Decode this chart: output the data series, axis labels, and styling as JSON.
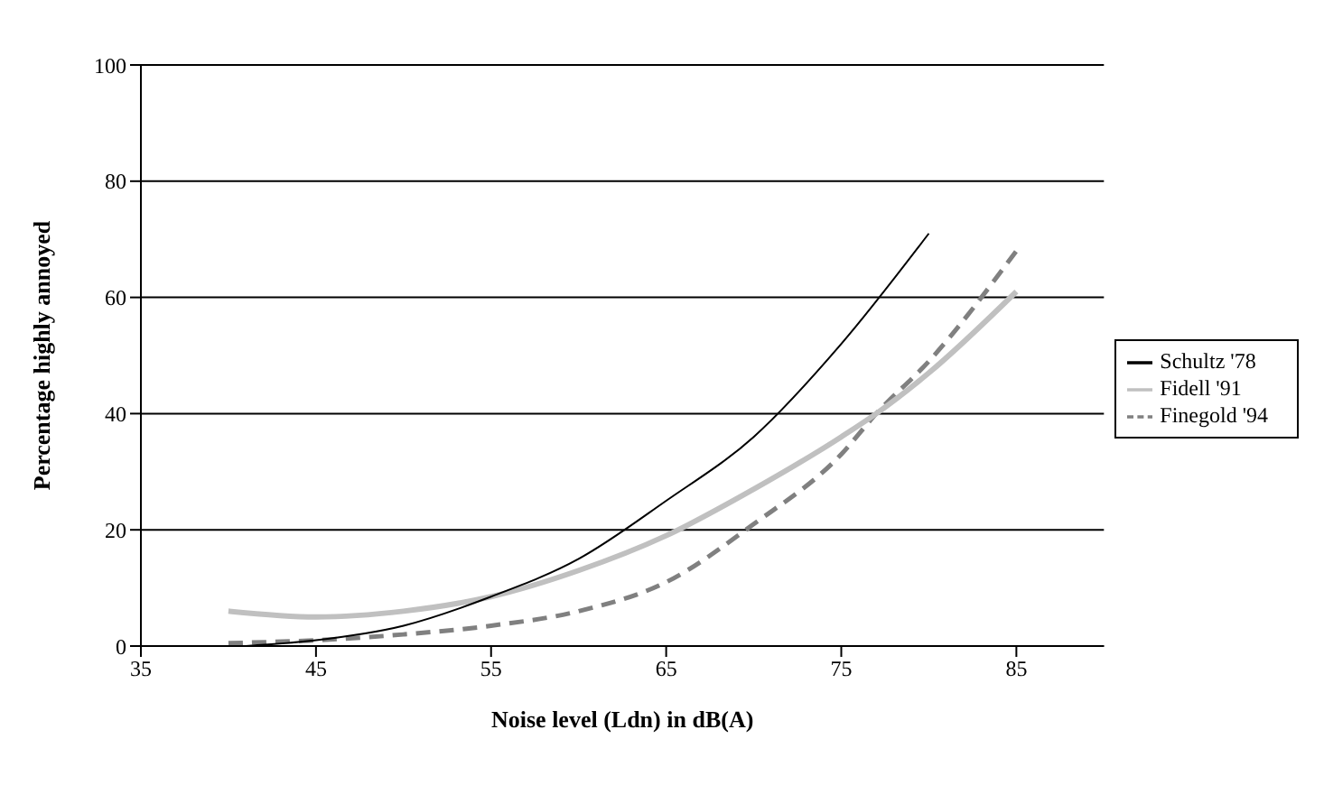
{
  "chart_data": {
    "type": "line",
    "xlabel": "Noise level (Ldn) in dB(A)",
    "ylabel": "Percentage highly annoyed",
    "xlim": [
      35,
      90
    ],
    "xticks": [
      35,
      45,
      55,
      65,
      75,
      85
    ],
    "ylim": [
      0,
      100
    ],
    "yticks": [
      0,
      20,
      40,
      60,
      80,
      100
    ],
    "grid": "y",
    "legend": "right",
    "marker": "none",
    "series": [
      {
        "name": "Schultz '78",
        "color": "#000000",
        "line_style": "solid",
        "x": [
          41,
          45,
          50,
          55,
          60,
          65,
          70,
          75,
          80
        ],
        "values": [
          0,
          1,
          3.5,
          8.5,
          15,
          25,
          36,
          52,
          71
        ]
      },
      {
        "name": "Fidell '91",
        "color": "#c0c0c0",
        "line_style": "solid",
        "x": [
          40,
          45,
          50,
          55,
          60,
          65,
          70,
          75,
          77,
          80,
          85
        ],
        "values": [
          6,
          5,
          6,
          8.5,
          13,
          19,
          27,
          36,
          40,
          47,
          61
        ]
      },
      {
        "name": "Finegold '94",
        "color": "#808080",
        "line_style": "dashed",
        "x": [
          40,
          45,
          50,
          55,
          60,
          65,
          70,
          75,
          77,
          80,
          85
        ],
        "values": [
          0.5,
          1,
          2,
          3.5,
          6,
          11,
          21,
          33,
          40,
          49,
          68
        ]
      }
    ]
  }
}
